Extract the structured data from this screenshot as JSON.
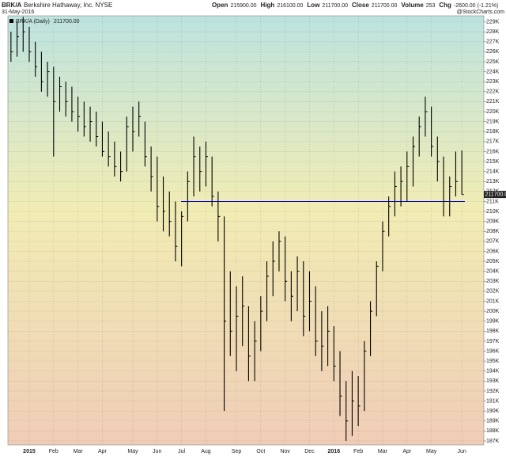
{
  "chart_data": {
    "type": "ohlc",
    "symbol": "BRK/A",
    "company": "Berkshire Hathaway, Inc. NYSE",
    "date": "31-May-2016",
    "credit": "@StockCharts.com",
    "quote": [
      {
        "label": "Open",
        "value": "215900.00"
      },
      {
        "label": "High",
        "value": "216100.00"
      },
      {
        "label": "Low",
        "value": "211700.00"
      },
      {
        "label": "Close",
        "value": "211700.00"
      },
      {
        "label": "Volume",
        "value": "253"
      },
      {
        "label": "Chg",
        "value": "-2600.00 (-1.21%)"
      }
    ],
    "categories": [
      null,
      null,
      null,
      "2015",
      null,
      null,
      null,
      "Feb",
      null,
      null,
      null,
      "Mar",
      null,
      null,
      null,
      "Apr",
      null,
      null,
      null,
      null,
      "May",
      null,
      null,
      null,
      "Jun",
      null,
      null,
      null,
      "Jul",
      null,
      null,
      null,
      "Aug",
      null,
      null,
      null,
      null,
      "Sep",
      null,
      null,
      null,
      "Oct",
      null,
      null,
      null,
      "Nov",
      null,
      null,
      null,
      "Dec",
      null,
      null,
      null,
      "2016",
      null,
      null,
      null,
      "Feb",
      null,
      null,
      null,
      "Mar",
      null,
      null,
      null,
      "Apr",
      null,
      null,
      null,
      "May",
      null,
      null,
      null,
      null,
      "Jun"
    ],
    "series": [
      {
        "name": "BRK/A (Daily)",
        "color": "#000000",
        "last": 211700,
        "last_label": "211700.00",
        "high": [
          228000,
          229000,
          229500,
          228500,
          227000,
          226000,
          225000,
          224500,
          223500,
          223000,
          222500,
          221500,
          221000,
          220500,
          220000,
          219000,
          218000,
          217000,
          216000,
          219500,
          220500,
          221000,
          219000,
          216500,
          215500,
          213500,
          212000,
          211000,
          210000,
          214000,
          217500,
          216500,
          217000,
          215500,
          212000,
          209500,
          204000,
          202500,
          203500,
          200500,
          199000,
          201500,
          205000,
          207000,
          208000,
          207500,
          204000,
          205500,
          205000,
          204000,
          202500,
          200000,
          200500,
          198500,
          196000,
          193000,
          194000,
          193500,
          197000,
          201000,
          205000,
          209000,
          211500,
          214000,
          214500,
          216000,
          217500,
          219500,
          221500,
          220500,
          217500,
          215500,
          213500,
          216000,
          216100
        ],
        "low": [
          225000,
          225500,
          226000,
          225000,
          223500,
          222000,
          221500,
          215500,
          220000,
          219500,
          219000,
          218000,
          217500,
          217000,
          216500,
          215500,
          214500,
          213500,
          213000,
          214000,
          216000,
          217500,
          214500,
          212000,
          209000,
          208000,
          207500,
          205000,
          204500,
          209000,
          211500,
          212000,
          212500,
          210500,
          207000,
          190000,
          195500,
          194000,
          196500,
          193000,
          193000,
          196000,
          199000,
          201500,
          204000,
          201000,
          199000,
          200000,
          197500,
          198000,
          195500,
          194000,
          194500,
          193000,
          189500,
          187000,
          187500,
          188500,
          190000,
          195500,
          199500,
          204000,
          207500,
          209500,
          210500,
          211000,
          212500,
          215500,
          217500,
          215500,
          213000,
          209500,
          209500,
          211500,
          211700
        ],
        "close": [
          226000,
          227500,
          228000,
          226000,
          224500,
          223000,
          224000,
          221000,
          222500,
          221000,
          220000,
          219500,
          218500,
          219000,
          217500,
          216000,
          215500,
          214500,
          214000,
          218500,
          218000,
          219500,
          215500,
          213500,
          210500,
          210000,
          209000,
          206500,
          209500,
          213000,
          215500,
          214000,
          215500,
          211500,
          209500,
          199000,
          198000,
          199500,
          200500,
          195500,
          197000,
          200000,
          203500,
          205000,
          207000,
          203000,
          201500,
          204000,
          199500,
          201000,
          197000,
          196500,
          198000,
          194500,
          191500,
          189000,
          191000,
          190500,
          196000,
          200000,
          204500,
          208000,
          210500,
          212500,
          213000,
          214500,
          216500,
          218500,
          220000,
          216500,
          215000,
          211000,
          212500,
          213000,
          211700
        ]
      }
    ],
    "hline": 211000,
    "hline_color": "#0000cc",
    "ylim": [
      186600,
      229600
    ],
    "yticks": [
      {
        "value": 187000,
        "label": "187K"
      },
      {
        "value": 188000,
        "label": "188K"
      },
      {
        "value": 189000,
        "label": "189K"
      },
      {
        "value": 190000,
        "label": "190K"
      },
      {
        "value": 191000,
        "label": "191K"
      },
      {
        "value": 192000,
        "label": "192K"
      },
      {
        "value": 193000,
        "label": "193K"
      },
      {
        "value": 194000,
        "label": "194K"
      },
      {
        "value": 195000,
        "label": "195K"
      },
      {
        "value": 196000,
        "label": "196K"
      },
      {
        "value": 197000,
        "label": "197K"
      },
      {
        "value": 198000,
        "label": "198K"
      },
      {
        "value": 199000,
        "label": "199K"
      },
      {
        "value": 200000,
        "label": "200K"
      },
      {
        "value": 201000,
        "label": "201K"
      },
      {
        "value": 202000,
        "label": "202K"
      },
      {
        "value": 203000,
        "label": "203K"
      },
      {
        "value": 204000,
        "label": "204K"
      },
      {
        "value": 205000,
        "label": "205K"
      },
      {
        "value": 206000,
        "label": "206K"
      },
      {
        "value": 207000,
        "label": "207K"
      },
      {
        "value": 208000,
        "label": "208K"
      },
      {
        "value": 209000,
        "label": "209K"
      },
      {
        "value": 210000,
        "label": "210K"
      },
      {
        "value": 211000,
        "label": "211K"
      },
      {
        "value": 212000,
        "label": "212K"
      },
      {
        "value": 213000,
        "label": "213K"
      },
      {
        "value": 214000,
        "label": "214K"
      },
      {
        "value": 215000,
        "label": "215K"
      },
      {
        "value": 216000,
        "label": "216K"
      },
      {
        "value": 217000,
        "label": "217K"
      },
      {
        "value": 218000,
        "label": "218K"
      },
      {
        "value": 219000,
        "label": "219K"
      },
      {
        "value": 220000,
        "label": "220K"
      },
      {
        "value": 221000,
        "label": "221K"
      },
      {
        "value": 222000,
        "label": "222K"
      },
      {
        "value": 223000,
        "label": "223K"
      },
      {
        "value": 224000,
        "label": "224K"
      },
      {
        "value": 225000,
        "label": "225K"
      },
      {
        "value": 226000,
        "label": "226K"
      },
      {
        "value": 227000,
        "label": "227K"
      },
      {
        "value": 228000,
        "label": "228K"
      },
      {
        "value": 229000,
        "label": "229K"
      }
    ],
    "grid": true
  }
}
